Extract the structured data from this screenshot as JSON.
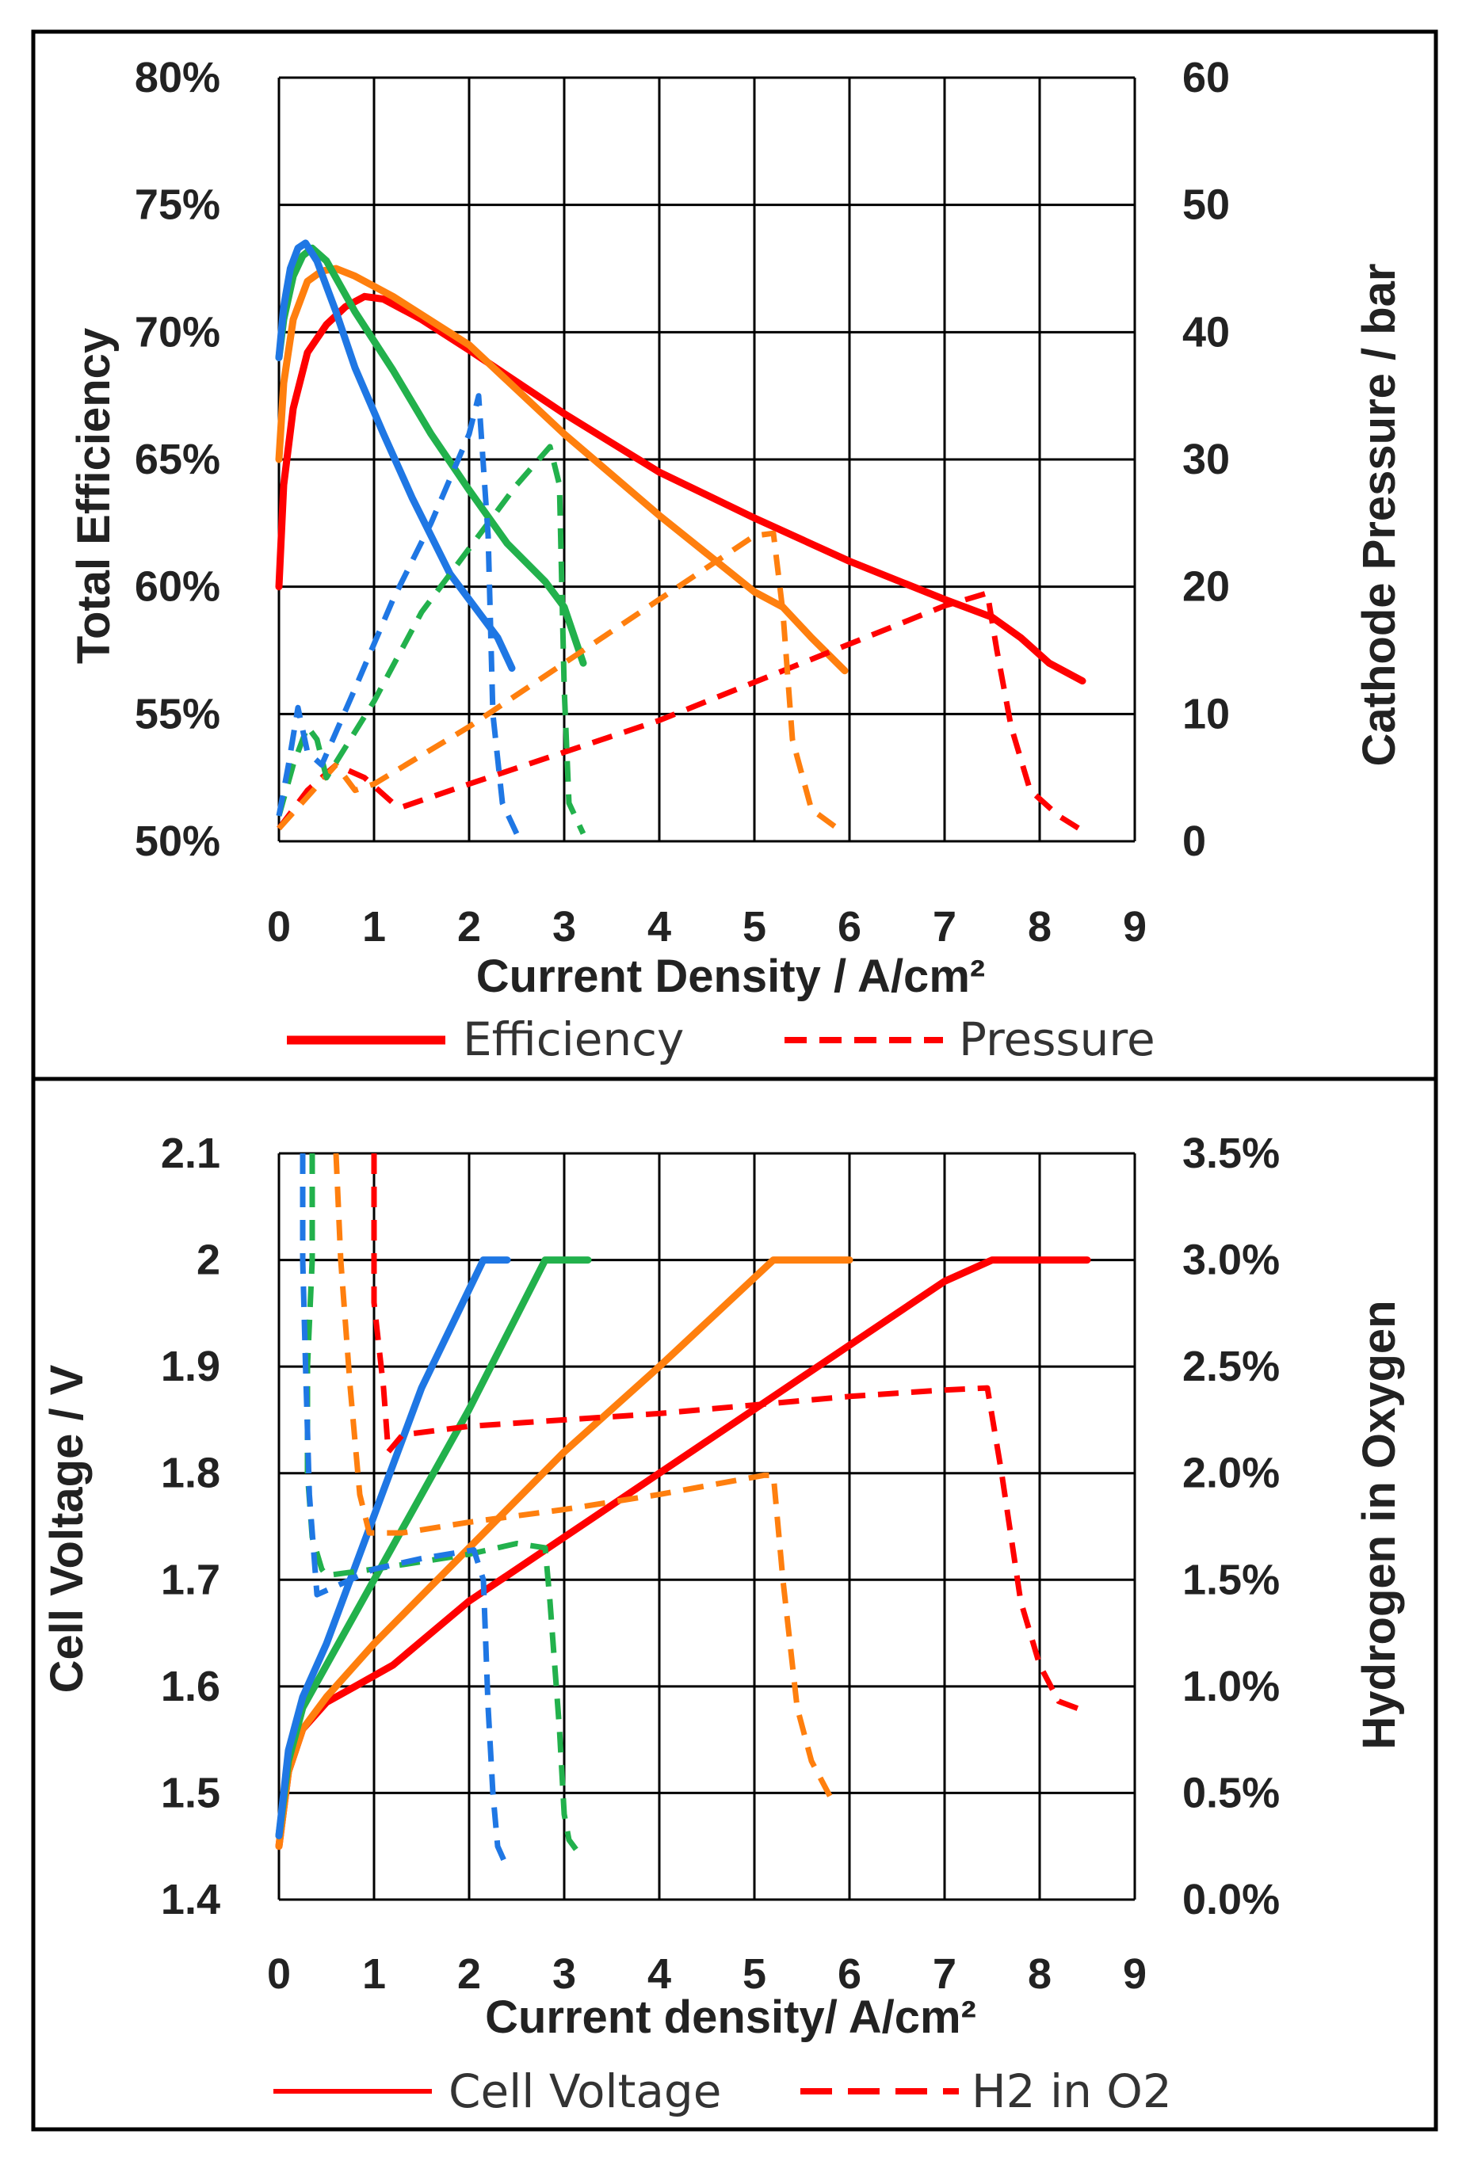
{
  "colors": {
    "red": "#ff0000",
    "orange": "#ff7f0e",
    "green": "#22b14c",
    "blue": "#1f77e4",
    "grid": "#000000",
    "frame": "#000000"
  },
  "chart_data": [
    {
      "type": "line",
      "xlabel": "Current Density / A/cm²",
      "ylabel": "Total Efficiency",
      "y2label": "Cathode Pressure / bar",
      "xlim": [
        0,
        9
      ],
      "ylim": [
        0.5,
        0.8
      ],
      "y2lim": [
        0,
        60
      ],
      "x_ticks": [
        "0",
        "1",
        "2",
        "3",
        "4",
        "5",
        "6",
        "7",
        "8",
        "9"
      ],
      "y_ticks": [
        "50%",
        "55%",
        "60%",
        "65%",
        "70%",
        "75%",
        "80%"
      ],
      "y2_ticks": [
        "0",
        "10",
        "20",
        "30",
        "40",
        "50",
        "60"
      ],
      "grid": true,
      "legend": [
        "Efficiency",
        "Pressure"
      ],
      "series": [
        {
          "color": "red",
          "style": "solid",
          "axis": "left",
          "x": [
            0,
            0.05,
            0.15,
            0.3,
            0.5,
            0.7,
            0.9,
            1.1,
            1.5,
            2,
            3,
            4,
            5,
            6,
            7,
            7.5,
            7.8,
            8.1,
            8.45
          ],
          "y": [
            0.6,
            0.64,
            0.67,
            0.692,
            0.703,
            0.71,
            0.714,
            0.713,
            0.705,
            0.693,
            0.668,
            0.645,
            0.627,
            0.61,
            0.595,
            0.588,
            0.58,
            0.57,
            0.563
          ]
        },
        {
          "color": "orange",
          "style": "solid",
          "axis": "left",
          "x": [
            0,
            0.05,
            0.15,
            0.3,
            0.45,
            0.6,
            0.8,
            1.2,
            2,
            3,
            4,
            5,
            5.3,
            5.6,
            5.95
          ],
          "y": [
            0.65,
            0.68,
            0.705,
            0.72,
            0.724,
            0.725,
            0.722,
            0.714,
            0.695,
            0.66,
            0.628,
            0.598,
            0.592,
            0.58,
            0.567
          ]
        },
        {
          "color": "green",
          "style": "solid",
          "axis": "left",
          "x": [
            0,
            0.05,
            0.15,
            0.25,
            0.35,
            0.5,
            0.8,
            1.2,
            1.6,
            2,
            2.4,
            2.8,
            3,
            3.2
          ],
          "y": [
            0.69,
            0.705,
            0.722,
            0.73,
            0.733,
            0.728,
            0.708,
            0.685,
            0.66,
            0.638,
            0.617,
            0.602,
            0.592,
            0.57
          ]
        },
        {
          "color": "blue",
          "style": "solid",
          "axis": "left",
          "x": [
            0,
            0.05,
            0.12,
            0.2,
            0.28,
            0.4,
            0.6,
            0.8,
            1.1,
            1.4,
            1.8,
            2.1,
            2.3,
            2.45
          ],
          "y": [
            0.69,
            0.71,
            0.725,
            0.733,
            0.735,
            0.728,
            0.708,
            0.686,
            0.66,
            0.635,
            0.605,
            0.59,
            0.58,
            0.568
          ]
        },
        {
          "color": "red",
          "style": "dashed",
          "axis": "right",
          "x": [
            0,
            0.3,
            0.6,
            0.9,
            1.2,
            1.3,
            2,
            3,
            4,
            5,
            6,
            7,
            7.45,
            7.55,
            7.7,
            7.9,
            8.2,
            8.5
          ],
          "y": [
            1,
            4,
            6,
            5,
            3,
            2.7,
            4.5,
            7,
            9.5,
            12.5,
            15.5,
            18.5,
            19.5,
            15,
            9,
            4,
            2,
            0.6
          ]
        },
        {
          "color": "orange",
          "style": "dashed",
          "axis": "right",
          "x": [
            0,
            0.3,
            0.6,
            0.8,
            1,
            2,
            3,
            4,
            5,
            5.2,
            5.3,
            5.4,
            5.6,
            5.95
          ],
          "y": [
            1,
            3.5,
            6,
            4,
            4.5,
            9,
            14,
            19,
            24,
            24.2,
            18,
            8,
            2.5,
            0.6
          ]
        },
        {
          "color": "green",
          "style": "dashed",
          "axis": "right",
          "x": [
            0,
            0.15,
            0.3,
            0.4,
            0.5,
            1,
            1.5,
            2,
            2.5,
            2.85,
            2.95,
            3,
            3.05,
            3.2
          ],
          "y": [
            2,
            6,
            9,
            8,
            5,
            11,
            18,
            23,
            28,
            31,
            28,
            12,
            3,
            0.6
          ]
        },
        {
          "color": "blue",
          "style": "dashed",
          "axis": "right",
          "x": [
            0,
            0.1,
            0.2,
            0.3,
            0.45,
            0.8,
            1.2,
            1.6,
            2,
            2.1,
            2.2,
            2.25,
            2.35,
            2.5
          ],
          "y": [
            2,
            6,
            10.5,
            7,
            6,
            12,
            19,
            25,
            32,
            35,
            24,
            10,
            3,
            0.6
          ]
        }
      ]
    },
    {
      "type": "line",
      "xlabel": "Current density/ A/cm²",
      "ylabel": "Cell Voltage / V",
      "y2label": "Hydrogen in Oxygen",
      "xlim": [
        0,
        9
      ],
      "ylim": [
        1.4,
        2.1
      ],
      "y2lim": [
        0,
        0.035
      ],
      "x_ticks": [
        "0",
        "1",
        "2",
        "3",
        "4",
        "5",
        "6",
        "7",
        "8",
        "9"
      ],
      "y_ticks": [
        "1.4",
        "1.5",
        "1.6",
        "1.7",
        "1.8",
        "1.9",
        "2",
        "2.1"
      ],
      "y2_ticks": [
        "0.0%",
        "0.5%",
        "1.0%",
        "1.5%",
        "2.0%",
        "2.5%",
        "3.0%",
        "3.5%"
      ],
      "grid": true,
      "legend": [
        "Cell Voltage",
        "H2 in O2"
      ],
      "series": [
        {
          "color": "red",
          "style": "solid",
          "axis": "left",
          "x": [
            0,
            0.1,
            0.25,
            0.5,
            0.8,
            1.2,
            2,
            3,
            4,
            5,
            6,
            7,
            7.5,
            8,
            8.5
          ],
          "y": [
            1.45,
            1.52,
            1.56,
            1.585,
            1.6,
            1.62,
            1.68,
            1.74,
            1.8,
            1.86,
            1.92,
            1.98,
            2.0,
            2.0,
            2.0
          ]
        },
        {
          "color": "orange",
          "style": "solid",
          "axis": "left",
          "x": [
            0,
            0.1,
            0.25,
            0.5,
            1,
            2,
            3,
            4,
            5.2,
            5.5,
            6
          ],
          "y": [
            1.45,
            1.52,
            1.56,
            1.59,
            1.64,
            1.73,
            1.82,
            1.9,
            2.0,
            2.0,
            2.0
          ]
        },
        {
          "color": "green",
          "style": "solid",
          "axis": "left",
          "x": [
            0,
            0.1,
            0.25,
            0.5,
            1,
            2,
            2.8,
            3,
            3.25
          ],
          "y": [
            1.46,
            1.53,
            1.58,
            1.62,
            1.7,
            1.86,
            2.0,
            2.0,
            2.0
          ]
        },
        {
          "color": "blue",
          "style": "solid",
          "axis": "left",
          "x": [
            0,
            0.1,
            0.25,
            0.5,
            1,
            1.5,
            2.15,
            2.4
          ],
          "y": [
            1.46,
            1.54,
            1.59,
            1.64,
            1.76,
            1.88,
            2.0,
            2.0
          ]
        },
        {
          "color": "red",
          "style": "dashed",
          "axis": "right",
          "x": [
            1.0,
            1.0,
            1.1,
            1.15,
            1.3,
            2,
            3,
            4,
            5,
            6,
            7,
            7.45,
            7.6,
            7.8,
            8.0,
            8.2,
            8.5
          ],
          "y": [
            0.035,
            0.028,
            0.024,
            0.021,
            0.0218,
            0.0222,
            0.0225,
            0.0228,
            0.0232,
            0.0236,
            0.0239,
            0.024,
            0.02,
            0.014,
            0.011,
            0.0093,
            0.0088
          ]
        },
        {
          "color": "orange",
          "style": "dashed",
          "axis": "right",
          "x": [
            0.6,
            0.65,
            0.75,
            0.85,
            0.95,
            1.3,
            2,
            3,
            4,
            5.1,
            5.2,
            5.3,
            5.45,
            5.6,
            5.8
          ],
          "y": [
            0.035,
            0.03,
            0.024,
            0.019,
            0.0172,
            0.0172,
            0.0177,
            0.0183,
            0.019,
            0.0199,
            0.0199,
            0.015,
            0.009,
            0.0065,
            0.0048
          ]
        },
        {
          "color": "green",
          "style": "dashed",
          "axis": "right",
          "x": [
            0.35,
            0.35,
            0.3,
            0.3,
            0.35,
            0.45,
            0.5,
            1,
            2,
            2.5,
            2.8,
            2.85,
            2.95,
            3.0,
            3.05,
            3.15
          ],
          "y": [
            0.035,
            0.03,
            0.025,
            0.02,
            0.017,
            0.0155,
            0.0152,
            0.0155,
            0.0162,
            0.0167,
            0.0165,
            0.014,
            0.008,
            0.004,
            0.0028,
            0.0022
          ]
        },
        {
          "color": "blue",
          "style": "dashed",
          "axis": "right",
          "x": [
            0.25,
            0.25,
            0.28,
            0.32,
            0.4,
            1,
            1.5,
            2.05,
            2.15,
            2.2,
            2.25,
            2.3,
            2.4
          ],
          "y": [
            0.035,
            0.03,
            0.025,
            0.019,
            0.0143,
            0.0155,
            0.016,
            0.0164,
            0.015,
            0.009,
            0.005,
            0.0025,
            0.0015
          ]
        }
      ]
    }
  ]
}
